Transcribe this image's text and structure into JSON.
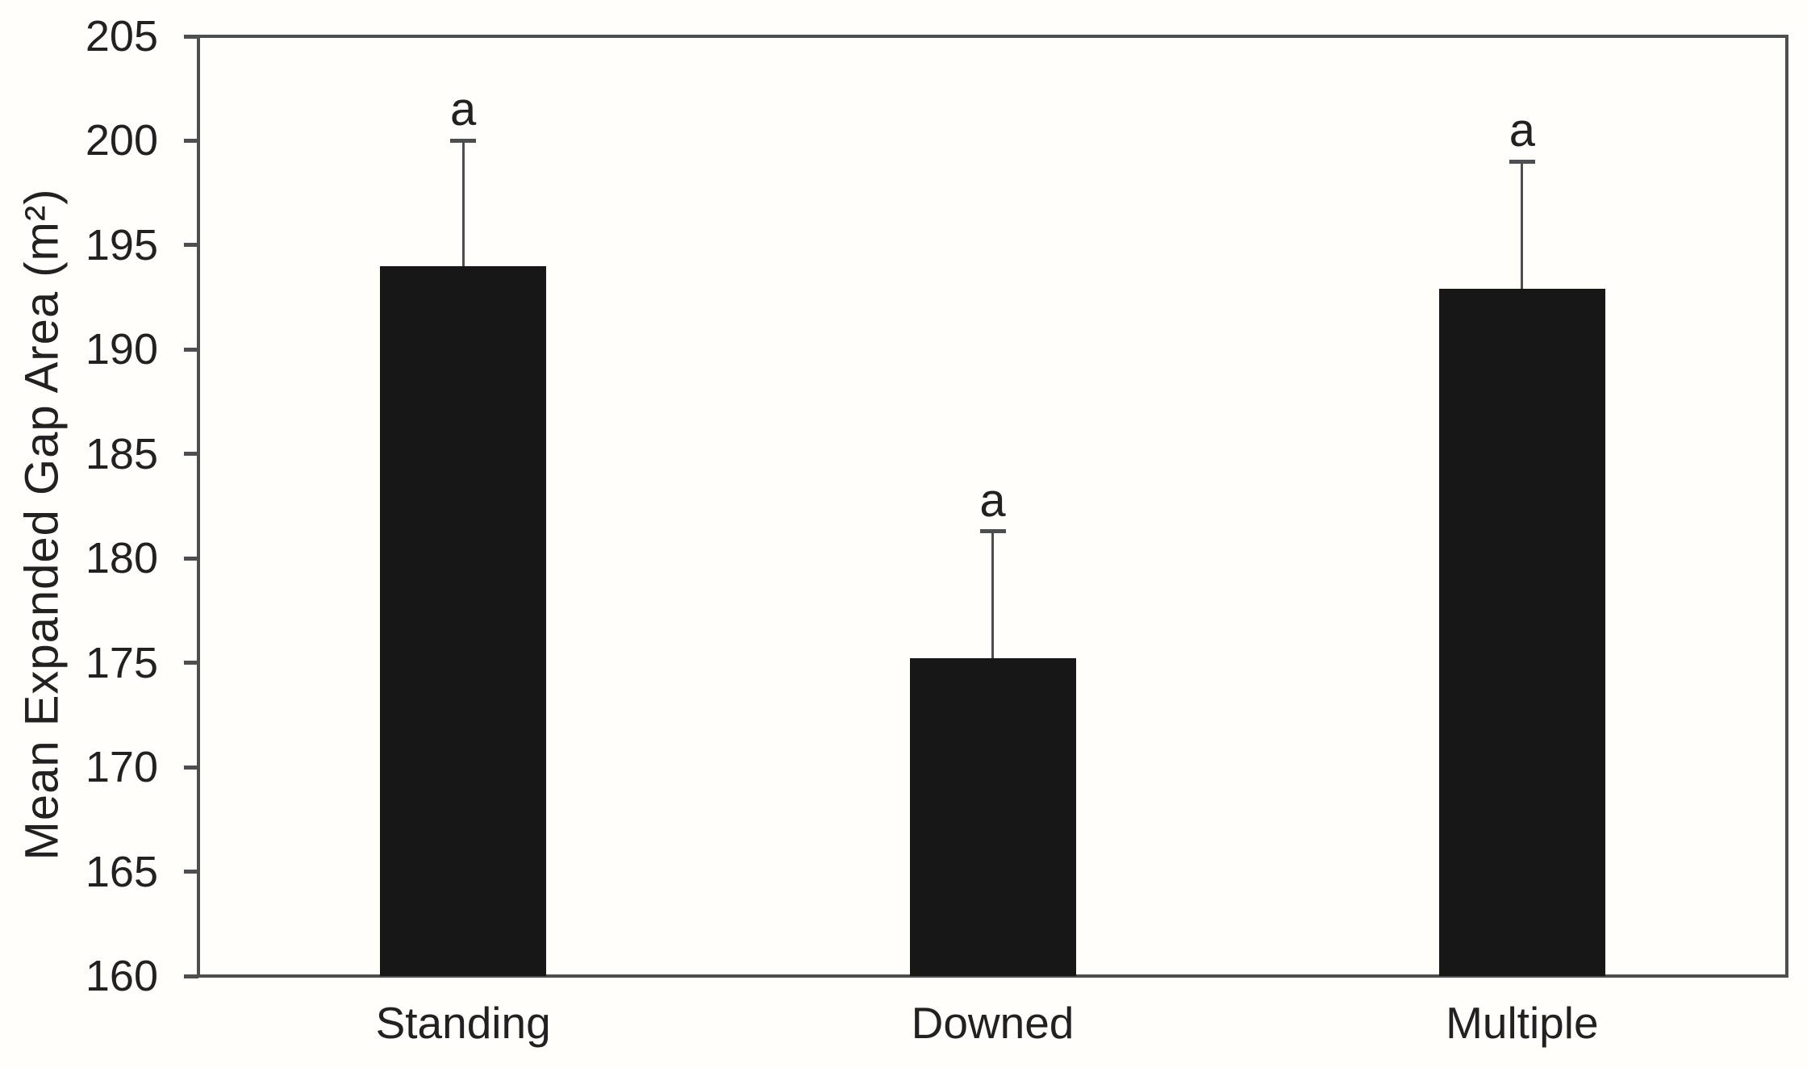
{
  "figure": {
    "background_color": "#fffefa",
    "frame_color": "#4d4e50"
  },
  "chart_data": {
    "type": "bar",
    "title": "",
    "xlabel": "",
    "ylabel": "Mean Expanded Gap Area (m²)",
    "categories": [
      "Standing",
      "Downed",
      "Multiple"
    ],
    "values": [
      194.0,
      175.2,
      192.9
    ],
    "error_plus": [
      6.0,
      6.1,
      6.1
    ],
    "error_bar_tops": [
      200.0,
      181.3,
      199.0
    ],
    "sig_letters": [
      "a",
      "a",
      "a"
    ],
    "ylim": [
      160,
      205
    ],
    "yticks": [
      160,
      165,
      170,
      175,
      180,
      185,
      190,
      195,
      200,
      205
    ],
    "grid": false,
    "legend": false,
    "bar_color": "#171717",
    "axis_color": "#4d4e50",
    "text_color": "#232021"
  }
}
